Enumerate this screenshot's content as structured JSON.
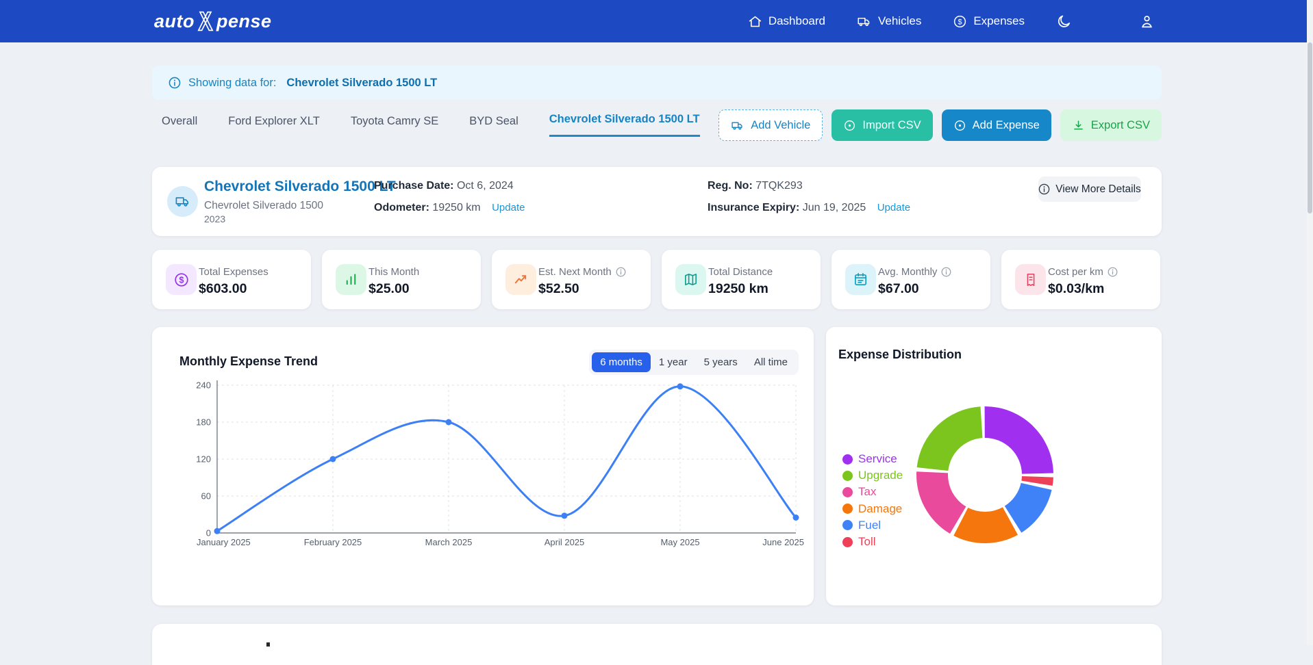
{
  "navbar": {
    "brand_part1": "auto",
    "brand_part2": "pense",
    "items": [
      {
        "label": "Dashboard"
      },
      {
        "label": "Vehicles"
      },
      {
        "label": "Expenses"
      }
    ]
  },
  "banner": {
    "prefix": "Showing data for:",
    "vehicle": "Chevrolet Silverado 1500 LT"
  },
  "tabs": {
    "items": [
      {
        "label": "Overall"
      },
      {
        "label": "Ford Explorer XLT"
      },
      {
        "label": "Toyota Camry SE"
      },
      {
        "label": "BYD Seal"
      },
      {
        "label": "Chevrolet Silverado 1500 LT"
      }
    ],
    "active": "Chevrolet Silverado 1500 LT"
  },
  "actions": {
    "add_vehicle": "Add Vehicle",
    "import_csv": "Import CSV",
    "add_expense": "Add Expense",
    "export_csv": "Export CSV"
  },
  "vehicle": {
    "name": "Chevrolet Silverado 1500 LT",
    "model": "Chevrolet Silverado 1500",
    "year": "2023",
    "purchase_date_label": "Purchase Date:",
    "purchase_date": "Oct 6, 2024",
    "odometer_label": "Odometer:",
    "odometer": "19250 km",
    "odometer_update": "Update",
    "reg_label": "Reg. No:",
    "reg": "7TQK293",
    "insurance_label": "Insurance Expiry:",
    "insurance": "Jun 19, 2025",
    "insurance_update": "Update",
    "view_more": "View More Details"
  },
  "stats": {
    "cards": [
      {
        "label": "Total Expenses",
        "value": "$603.00"
      },
      {
        "label": "This Month",
        "value": "$25.00"
      },
      {
        "label": "Est. Next Month",
        "value": "$52.50"
      },
      {
        "label": "Total Distance",
        "value": "19250 km"
      },
      {
        "label": "Avg. Monthly",
        "value": "$67.00"
      },
      {
        "label": "Cost per km",
        "value": "$0.03/km"
      }
    ]
  },
  "trend": {
    "title": "Monthly Expense Trend",
    "ranges": [
      "6 months",
      "1 year",
      "5 years",
      "All time"
    ],
    "active_range": "6 months"
  },
  "distribution": {
    "title": "Expense Distribution"
  },
  "chart_data": [
    {
      "type": "line",
      "title": "Monthly Expense Trend",
      "x": [
        "January 2025",
        "February 2025",
        "March 2025",
        "April 2025",
        "May 2025",
        "June 2025"
      ],
      "series": [
        {
          "name": "Monthly Expenses",
          "values": [
            3,
            120,
            180,
            28,
            238,
            25
          ]
        }
      ],
      "ylim": [
        0,
        240
      ],
      "yticks": [
        0,
        60,
        120,
        180,
        240
      ],
      "line_color": "#3d80f6",
      "grid": "dashed",
      "legend_position": "none"
    },
    {
      "type": "pie",
      "subtype": "donut",
      "title": "Expense Distribution",
      "legend_position": "left",
      "segments": [
        {
          "label": "Service",
          "pct": 26.2,
          "color": "#a12ff0"
        },
        {
          "label": "Upgrade",
          "pct": 23.6,
          "color": "#7cc51e"
        },
        {
          "label": "Tax",
          "pct": 18.3,
          "color": "#e94a9c"
        },
        {
          "label": "Damage",
          "pct": 16.5,
          "color": "#f5760c"
        },
        {
          "label": "Fuel",
          "pct": 13.3,
          "color": "#3f82f7"
        },
        {
          "label": "Toll",
          "pct": 2.1,
          "color": "#ee4056"
        }
      ],
      "draw_order": [
        "Service",
        "Toll",
        "Fuel",
        "Damage",
        "Tax",
        "Upgrade"
      ],
      "start_angle_deg": -2,
      "clockwise": true
    }
  ]
}
